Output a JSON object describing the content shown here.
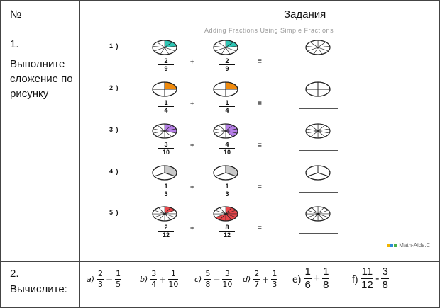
{
  "header": {
    "number_col": "№",
    "tasks_col": "Задания"
  },
  "task1": {
    "number": "1.",
    "instruction": "Выполните сложение по рисунку",
    "watermark": "Adding Fractions Using Simple Fractions",
    "credit": "Math-Aids.C",
    "problems": [
      {
        "label": "1 )",
        "segments": 9,
        "a": {
          "num": "2",
          "den": "9"
        },
        "b": {
          "num": "2",
          "den": "9"
        },
        "color": "#2ec6b5",
        "answer_line": false
      },
      {
        "label": "2 )",
        "segments": 4,
        "a": {
          "num": "1",
          "den": "4"
        },
        "b": {
          "num": "1",
          "den": "4"
        },
        "color": "#f08a0c",
        "answer_line": true
      },
      {
        "label": "3 )",
        "segments": 10,
        "a": {
          "num": "3",
          "den": "10"
        },
        "b": {
          "num": "4",
          "den": "10"
        },
        "color": "#b57ee6",
        "answer_line": true
      },
      {
        "label": "4 )",
        "segments": 3,
        "a": {
          "num": "1",
          "den": "3"
        },
        "b": {
          "num": "1",
          "den": "3"
        },
        "color": "#c9c9c9",
        "answer_line": true
      },
      {
        "label": "5 )",
        "segments": 12,
        "a": {
          "num": "2",
          "den": "12"
        },
        "b": {
          "num": "8",
          "den": "12"
        },
        "color": "#e8464b",
        "answer_line": true
      }
    ],
    "plus": "+",
    "equals": "="
  },
  "task2": {
    "number": "2.",
    "instruction": "Вычислите:",
    "expressions": [
      {
        "label": "a)",
        "a": {
          "num": "2",
          "den": "3"
        },
        "op": "−",
        "b": {
          "num": "1",
          "den": "5"
        }
      },
      {
        "label": "b)",
        "a": {
          "num": "3",
          "den": "4"
        },
        "op": "+",
        "b": {
          "num": "1",
          "den": "10"
        }
      },
      {
        "label": "c)",
        "a": {
          "num": "5",
          "den": "8"
        },
        "op": "−",
        "b": {
          "num": "3",
          "den": "10"
        }
      },
      {
        "label": "d)",
        "a": {
          "num": "2",
          "den": "7"
        },
        "op": "+",
        "b": {
          "num": "1",
          "den": "3"
        }
      },
      {
        "label": "e)",
        "a": {
          "num": "1",
          "den": "6"
        },
        "op": "+",
        "b": {
          "num": "1",
          "den": "8"
        }
      },
      {
        "label": "f)",
        "a": {
          "num": "11",
          "den": "12"
        },
        "op": "-",
        "b": {
          "num": "3",
          "den": "8"
        }
      }
    ]
  }
}
